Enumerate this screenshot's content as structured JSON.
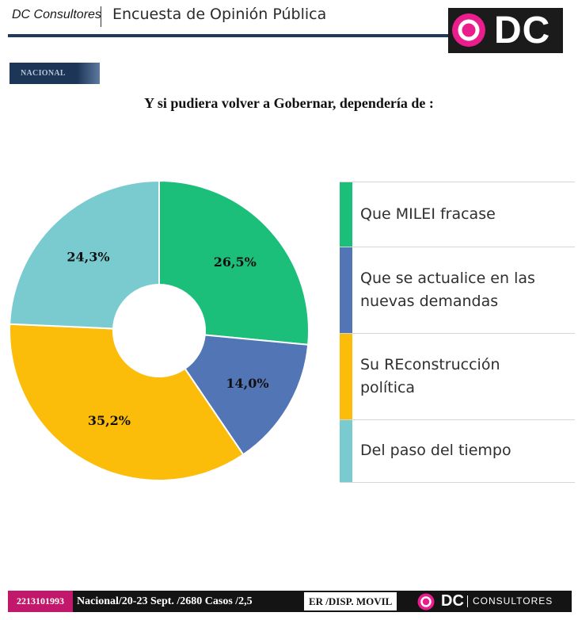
{
  "header": {
    "brand": "DC Consultores",
    "title": "Encuesta de Opinión Pública",
    "logo_text": "DC"
  },
  "section_tag": "NACIONAL",
  "question": "Y si pudiera volver a Gobernar, dependería de :",
  "colors": {
    "green": "#1cbf7a",
    "blue": "#5275b5",
    "yellow": "#fbbd0a",
    "teal": "#79cbd0",
    "brand_pink": "#e91e8c",
    "navy": "#1f3a5c"
  },
  "chart_data": {
    "type": "pie",
    "donut": true,
    "categories": [
      "Que MILEI fracase",
      "Que se actualice en las nuevas demandas",
      "Su REconstrucción política",
      "Del paso del tiempo"
    ],
    "values": [
      26.5,
      14.0,
      35.2,
      24.3
    ],
    "data_labels": [
      "26,5%",
      "14,0%",
      "35,2%",
      "24,3%"
    ],
    "colors": [
      "#1cbf7a",
      "#5275b5",
      "#fbbd0a",
      "#79cbd0"
    ],
    "legend_position": "right"
  },
  "legend": [
    {
      "lines": [
        "Que MILEI fracase"
      ]
    },
    {
      "lines": [
        "Que se actualice en las",
        "nuevas demandas"
      ]
    },
    {
      "lines": [
        "Su REconstrucción",
        "política"
      ]
    },
    {
      "lines": [
        "Del paso del tiempo"
      ]
    }
  ],
  "footer": {
    "phone": "2213101993",
    "info": "Nacional/20-23 Sept. /2680 Casos /2,5",
    "info2": "ER /DISP. MOVIL",
    "logo_dc": "DC",
    "logo_text": "CONSULTORES"
  }
}
